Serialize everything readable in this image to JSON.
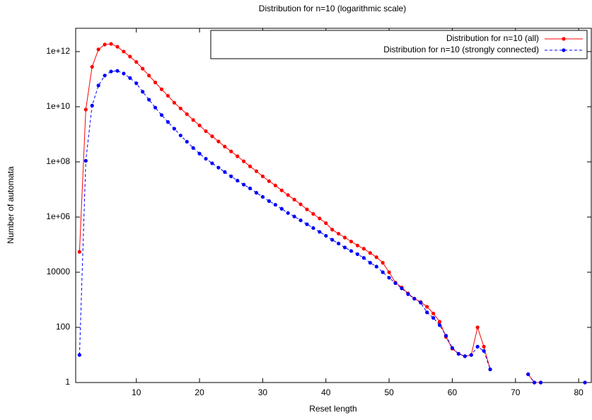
{
  "chart_data": {
    "type": "line",
    "title": "Distribution for n=10 (logarithmic scale)",
    "x_label": "Reset length",
    "y_label": "Number of automata",
    "ylog": true,
    "grid": false,
    "legend": "top-right",
    "xlim": [
      0.4,
      82
    ],
    "xticks": [
      10,
      20,
      30,
      40,
      50,
      60,
      70,
      80
    ],
    "ylim": [
      1,
      7000000000000.0
    ],
    "yticks": [
      1,
      100,
      10000,
      {
        "value": 1000000,
        "label": "1e+06"
      },
      {
        "value": 100000000,
        "label": "1e+08"
      },
      {
        "value": 10000000000,
        "label": "1e+10"
      },
      {
        "value": 1000000000000,
        "label": "1e+12"
      }
    ],
    "x": [
      1,
      2,
      3,
      4,
      5,
      6,
      7,
      8,
      9,
      10,
      11,
      12,
      13,
      14,
      15,
      16,
      17,
      18,
      19,
      20,
      21,
      22,
      23,
      24,
      25,
      26,
      27,
      28,
      29,
      30,
      31,
      32,
      33,
      34,
      35,
      36,
      37,
      38,
      39,
      40,
      41,
      42,
      43,
      44,
      45,
      46,
      47,
      48,
      49,
      50,
      51,
      52,
      53,
      54,
      55,
      56,
      57,
      58,
      59,
      60,
      61,
      62,
      63,
      64,
      65,
      66,
      67,
      68,
      69,
      70,
      71,
      72,
      73,
      74,
      75,
      76,
      77,
      78,
      79,
      80,
      81
    ],
    "series": [
      {
        "name": "Distribution for n=10 (all)",
        "color": "#ff0000",
        "dashed": false,
        "values": [
          55000,
          7900000000.0,
          280000000000.0,
          1200000000000.0,
          1800000000000.0,
          1900000000000.0,
          1500000000000.0,
          1000000000000.0,
          660000000000.0,
          420000000000.0,
          240000000000.0,
          135000000000.0,
          76000000000.0,
          43000000000.0,
          25000000000.0,
          14000000000.0,
          8700000000.0,
          5400000000.0,
          3300000000.0,
          2100000000.0,
          1300000000.0,
          850000000.0,
          550000000.0,
          360000000.0,
          240000000.0,
          160000000.0,
          105000000.0,
          69000000.0,
          46000000.0,
          30000000.0,
          20000000.0,
          14000000.0,
          9300000.0,
          6300000.0,
          4300000.0,
          2900000.0,
          1900000.0,
          1300000.0,
          890000.0,
          600000.0,
          350000.0,
          250000.0,
          180000.0,
          130000.0,
          93000,
          71000,
          50000,
          35000,
          22000,
          10000,
          4200,
          2800,
          1700,
          1100,
          830,
          560,
          320,
          160,
          45,
          17,
          11,
          9,
          10,
          100,
          20,
          3,
          null,
          null,
          null,
          null,
          null,
          2,
          1,
          1,
          null,
          null,
          null,
          null,
          null,
          null,
          1
        ]
      },
      {
        "name": "Distribution for n=10 (strongly connected)",
        "color": "#0000ff",
        "dashed": true,
        "values": [
          10,
          110000000.0,
          11000000000.0,
          59000000000.0,
          135000000000.0,
          190000000000.0,
          200000000000.0,
          160000000000.0,
          110000000000.0,
          71000000000.0,
          35000000000.0,
          18000000000.0,
          9300000000.0,
          5000000000.0,
          2800000000.0,
          1600000000.0,
          910000000.0,
          540000000.0,
          320000000.0,
          200000000.0,
          130000000.0,
          89000000.0,
          62000000.0,
          43000000.0,
          30000000.0,
          21000000.0,
          15000000.0,
          11000000.0,
          7600000.0,
          5400000.0,
          3800000.0,
          2800000.0,
          2000000.0,
          1400000.0,
          1050000.0,
          760000.0,
          550000.0,
          400000.0,
          290000.0,
          210000.0,
          150000.0,
          110000.0,
          79000,
          59000,
          45000,
          33000,
          22000,
          16000,
          10000,
          6300,
          4000,
          2600,
          1600,
          1100,
          790,
          350,
          220,
          120,
          50,
          18,
          11,
          9,
          10,
          20,
          14,
          3,
          null,
          null,
          null,
          null,
          null,
          2,
          1,
          1,
          null,
          null,
          null,
          null,
          null,
          null,
          1
        ]
      }
    ]
  }
}
